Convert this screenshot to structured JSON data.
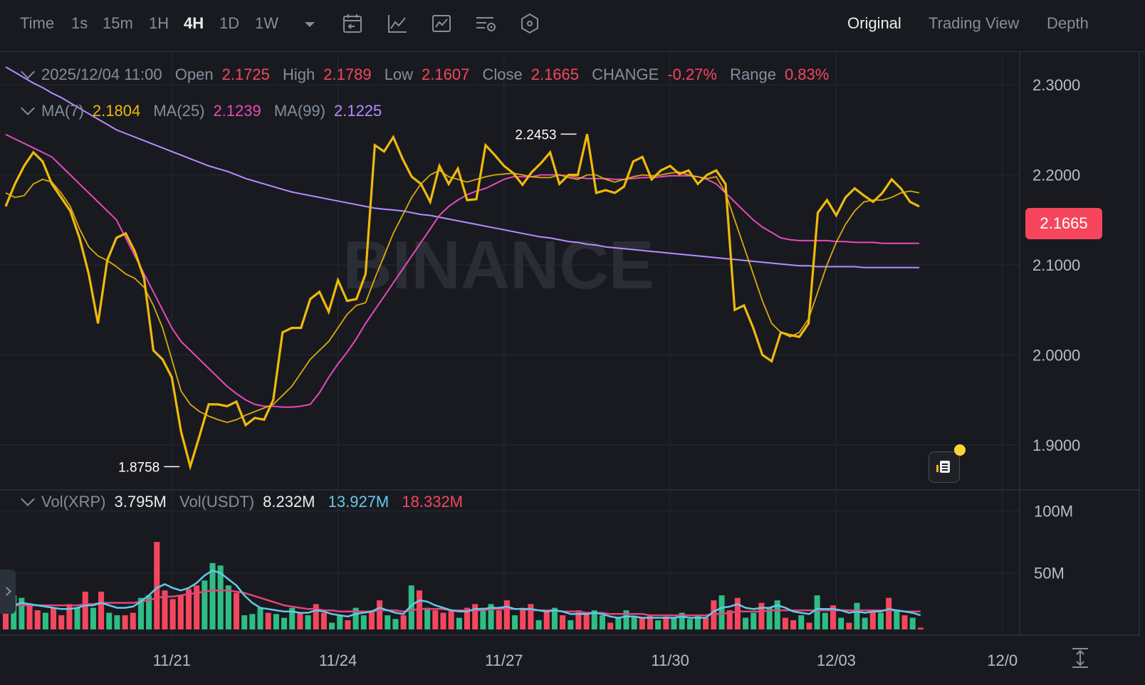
{
  "toolbar": {
    "intervals": [
      "Time",
      "1s",
      "15m",
      "1H",
      "4H",
      "1D",
      "1W"
    ],
    "active_interval": "4H",
    "icons": [
      "chevron-down-icon",
      "calendar-icon",
      "indicator-icon",
      "chart-type-icon",
      "settings-icon",
      "hexagon-icon"
    ],
    "views": [
      "Original",
      "Trading View",
      "Depth"
    ],
    "active_view": "Original"
  },
  "ohlc": {
    "date": "2025/12/04 11:00",
    "open_label": "Open",
    "open": "2.1725",
    "high_label": "High",
    "high": "2.1789",
    "low_label": "Low",
    "low": "2.1607",
    "close_label": "Close",
    "close": "2.1665",
    "change_label": "CHANGE",
    "change": "-0.27%",
    "range_label": "Range",
    "range": "0.83%"
  },
  "ma": {
    "ma7_label": "MA(7)",
    "ma7": "2.1804",
    "ma25_label": "MA(25)",
    "ma25": "2.1239",
    "ma99_label": "MA(99)",
    "ma99": "2.1225"
  },
  "volume": {
    "xrp_label": "Vol(XRP)",
    "xrp": "3.795M",
    "usdt_label": "Vol(USDT)",
    "usdt": "8.232M",
    "ma_a": "13.927M",
    "ma_b": "18.332M"
  },
  "last_price": "2.1665",
  "watermark": "BINANCE",
  "colors": {
    "up": "#2ebd85",
    "down": "#f6465d",
    "price": "#f0b90b",
    "ma7": "#f0b90b",
    "ma25": "#e84ab8",
    "ma99": "#b78cff",
    "vol_ma_a": "#66c8e8",
    "vol_ma_b": "#e0457b"
  },
  "chart_data": {
    "type": "line",
    "title": "",
    "price_axis": {
      "ticks": [
        "2.3000",
        "2.2000",
        "2.1000",
        "2.0000",
        "1.9000"
      ],
      "values": [
        2.3,
        2.2,
        2.1,
        2.0,
        1.9
      ],
      "range": [
        1.85,
        2.335
      ]
    },
    "volume_axis": {
      "ticks": [
        "100M",
        "50M"
      ],
      "values": [
        100,
        50
      ],
      "range": [
        0,
        110
      ]
    },
    "x_ticks": [
      "11/21",
      "11/24",
      "11/27",
      "11/30",
      "12/03",
      "12/0"
    ],
    "x_tick_index": [
      18,
      36,
      54,
      72,
      90,
      108
    ],
    "annotations": [
      {
        "text": "2.2453",
        "value": 2.2453,
        "index": 62
      },
      {
        "text": "1.8758",
        "value": 1.8758,
        "index": 19
      }
    ],
    "series": [
      {
        "name": "Price",
        "values": [
          2.165,
          2.19,
          2.21,
          2.225,
          2.215,
          2.19,
          2.175,
          2.16,
          2.13,
          2.09,
          2.035,
          2.105,
          2.13,
          2.135,
          2.115,
          2.085,
          2.005,
          1.995,
          1.975,
          1.915,
          1.876,
          1.91,
          1.945,
          1.945,
          1.943,
          1.948,
          1.922,
          1.93,
          1.928,
          1.95,
          2.025,
          2.03,
          2.03,
          2.062,
          2.07,
          2.048,
          2.083,
          2.06,
          2.062,
          2.09,
          2.233,
          2.226,
          2.242,
          2.218,
          2.198,
          2.19,
          2.17,
          2.21,
          2.19,
          2.207,
          2.172,
          2.173,
          2.233,
          2.222,
          2.21,
          2.202,
          2.189,
          2.203,
          2.213,
          2.225,
          2.19,
          2.2,
          2.2,
          2.2453,
          2.18,
          2.183,
          2.18,
          2.187,
          2.215,
          2.22,
          2.195,
          2.205,
          2.21,
          2.201,
          2.205,
          2.19,
          2.2,
          2.205,
          2.19,
          2.05,
          2.055,
          2.03,
          2.0,
          1.993,
          2.025,
          2.022,
          2.02,
          2.035,
          2.158,
          2.172,
          2.155,
          2.175,
          2.185,
          2.177,
          2.17,
          2.18,
          2.195,
          2.185,
          2.17,
          2.165
        ]
      },
      {
        "name": "MA(7)",
        "values": [
          2.18,
          2.175,
          2.177,
          2.19,
          2.195,
          2.192,
          2.18,
          2.165,
          2.14,
          2.12,
          2.11,
          2.105,
          2.098,
          2.09,
          2.085,
          2.075,
          2.055,
          2.03,
          1.995,
          1.96,
          1.945,
          1.937,
          1.932,
          1.928,
          1.925,
          1.928,
          1.933,
          1.937,
          1.941,
          1.945,
          1.955,
          1.965,
          1.98,
          1.995,
          2.005,
          2.015,
          2.03,
          2.045,
          2.055,
          2.058,
          2.085,
          2.11,
          2.135,
          2.155,
          2.175,
          2.19,
          2.2,
          2.205,
          2.198,
          2.195,
          2.192,
          2.195,
          2.198,
          2.2,
          2.201,
          2.202,
          2.2,
          2.198,
          2.197,
          2.197,
          2.2,
          2.197,
          2.195,
          2.2,
          2.2,
          2.195,
          2.192,
          2.195,
          2.198,
          2.2,
          2.199,
          2.2,
          2.202,
          2.203,
          2.2,
          2.198,
          2.196,
          2.198,
          2.18,
          2.15,
          2.12,
          2.09,
          2.06,
          2.035,
          2.025,
          2.02,
          2.025,
          2.04,
          2.07,
          2.1,
          2.125,
          2.145,
          2.16,
          2.17,
          2.172,
          2.172,
          2.175,
          2.18,
          2.182,
          2.18
        ]
      },
      {
        "name": "MA(25)",
        "values": [
          2.245,
          2.24,
          2.235,
          2.23,
          2.225,
          2.22,
          2.21,
          2.2,
          2.19,
          2.18,
          2.17,
          2.16,
          2.15,
          2.13,
          2.11,
          2.09,
          2.07,
          2.05,
          2.03,
          2.015,
          2.005,
          1.995,
          1.985,
          1.975,
          1.965,
          1.957,
          1.95,
          1.945,
          1.943,
          1.943,
          1.942,
          1.942,
          1.943,
          1.945,
          1.958,
          1.975,
          1.99,
          2.003,
          2.018,
          2.035,
          2.05,
          2.065,
          2.08,
          2.095,
          2.11,
          2.125,
          2.14,
          2.155,
          2.165,
          2.172,
          2.178,
          2.182,
          2.185,
          2.19,
          2.195,
          2.198,
          2.198,
          2.198,
          2.2,
          2.2,
          2.2,
          2.199,
          2.197,
          2.196,
          2.196,
          2.196,
          2.195,
          2.195,
          2.196,
          2.197,
          2.197,
          2.198,
          2.199,
          2.199,
          2.199,
          2.198,
          2.195,
          2.19,
          2.18,
          2.17,
          2.16,
          2.15,
          2.142,
          2.136,
          2.13,
          2.128,
          2.127,
          2.127,
          2.127,
          2.127,
          2.126,
          2.126,
          2.125,
          2.125,
          2.125,
          2.124,
          2.124,
          2.124,
          2.124,
          2.124
        ]
      },
      {
        "name": "MA(99)",
        "values": [
          2.32,
          2.314,
          2.308,
          2.302,
          2.297,
          2.291,
          2.286,
          2.28,
          2.274,
          2.268,
          2.262,
          2.256,
          2.25,
          2.246,
          2.242,
          2.238,
          2.234,
          2.23,
          2.226,
          2.222,
          2.218,
          2.214,
          2.21,
          2.207,
          2.204,
          2.2,
          2.196,
          2.193,
          2.19,
          2.187,
          2.184,
          2.181,
          2.179,
          2.177,
          2.175,
          2.173,
          2.171,
          2.169,
          2.167,
          2.165,
          2.163,
          2.162,
          2.161,
          2.16,
          2.158,
          2.156,
          2.155,
          2.153,
          2.151,
          2.149,
          2.147,
          2.145,
          2.143,
          2.141,
          2.139,
          2.137,
          2.135,
          2.133,
          2.131,
          2.13,
          2.128,
          2.126,
          2.125,
          2.123,
          2.122,
          2.12,
          2.119,
          2.118,
          2.117,
          2.116,
          2.115,
          2.114,
          2.113,
          2.112,
          2.111,
          2.11,
          2.109,
          2.108,
          2.107,
          2.106,
          2.105,
          2.104,
          2.103,
          2.102,
          2.101,
          2.1,
          2.099,
          2.099,
          2.098,
          2.098,
          2.098,
          2.098,
          2.098,
          2.097,
          2.097,
          2.097,
          2.097,
          2.097,
          2.097,
          2.097
        ]
      },
      {
        "name": "Volume",
        "values": [
          22,
          32,
          30,
          25,
          20,
          18,
          22,
          16,
          25,
          22,
          35,
          22,
          35,
          18,
          16,
          16,
          18,
          30,
          32,
          75,
          36,
          29,
          32,
          37,
          40,
          44,
          58,
          56,
          40,
          34,
          16,
          17,
          22,
          18,
          17,
          14,
          22,
          18,
          16,
          25,
          18,
          10,
          16,
          12,
          22,
          16,
          20,
          28,
          16,
          13,
          16,
          40,
          36,
          22,
          20,
          18,
          20,
          14,
          22,
          25,
          22,
          25,
          20,
          28,
          16,
          22,
          25,
          12,
          20,
          22,
          16,
          12,
          20,
          18,
          20,
          16,
          10,
          14,
          20,
          15,
          14,
          16,
          12,
          15,
          14,
          18,
          13,
          16,
          14,
          28,
          32,
          20,
          30,
          14,
          18,
          26,
          22,
          28,
          14,
          12,
          16,
          10,
          32,
          18,
          24,
          14,
          10,
          26,
          14,
          20,
          18,
          30,
          20,
          16,
          14,
          6
        ]
      },
      {
        "name": "Volume direction",
        "values": [
          0,
          1,
          1,
          0,
          0,
          1,
          0,
          0,
          0,
          1,
          0,
          1,
          0,
          1,
          1,
          0,
          0,
          1,
          1,
          0,
          0,
          0,
          0,
          0,
          0,
          1,
          1,
          1,
          1,
          0,
          1,
          1,
          1,
          0,
          1,
          1,
          1,
          0,
          1,
          0,
          0,
          1,
          1,
          0,
          1,
          1,
          0,
          0,
          1,
          1,
          0,
          1,
          0,
          1,
          0,
          0,
          0,
          1,
          0,
          0,
          1,
          1,
          0,
          0,
          1,
          0,
          0,
          1,
          0,
          1,
          0,
          1,
          0,
          0,
          1,
          1,
          0,
          1,
          1,
          1,
          0,
          0,
          1,
          0,
          1,
          1,
          1,
          1,
          0,
          0,
          1,
          0,
          0,
          1,
          1,
          0,
          1,
          1,
          0,
          0,
          1,
          0,
          1,
          1,
          0,
          1,
          0,
          1,
          1,
          0,
          1,
          0,
          1,
          0,
          1,
          0
        ]
      },
      {
        "name": "Volume MA A",
        "values": [
          20,
          24,
          26,
          25,
          24,
          23,
          22,
          21,
          21,
          22,
          24,
          24,
          26,
          24,
          22,
          22,
          23,
          27,
          32,
          38,
          41,
          38,
          36,
          38,
          42,
          48,
          52,
          50,
          45,
          40,
          32,
          26,
          22,
          21,
          20,
          19,
          19,
          18,
          18,
          20,
          19,
          17,
          16,
          15,
          17,
          18,
          19,
          22,
          20,
          18,
          17,
          24,
          28,
          27,
          24,
          22,
          20,
          19,
          19,
          21,
          21,
          22,
          22,
          23,
          21,
          21,
          21,
          20,
          19,
          20,
          19,
          17,
          17,
          17,
          18,
          17,
          15,
          14,
          15,
          15,
          14,
          14,
          14,
          14,
          14,
          15,
          14,
          14,
          14,
          19,
          22,
          23,
          25,
          22,
          21,
          22,
          22,
          24,
          22,
          19,
          18,
          17,
          21,
          21,
          21,
          20,
          18,
          19,
          18,
          19,
          19,
          21,
          20,
          19,
          18,
          16
        ]
      },
      {
        "name": "Volume MA B",
        "values": [
          24,
          24,
          24,
          24,
          24,
          24,
          24,
          24,
          24,
          24,
          25,
          25,
          26,
          26,
          26,
          26,
          26,
          27,
          28,
          30,
          31,
          31,
          32,
          33,
          34,
          35,
          36,
          36,
          36,
          35,
          34,
          32,
          30,
          28,
          26,
          24,
          23,
          22,
          21,
          21,
          20,
          20,
          19,
          19,
          19,
          19,
          19,
          20,
          20,
          20,
          19,
          20,
          21,
          21,
          21,
          21,
          20,
          20,
          20,
          20,
          20,
          21,
          21,
          21,
          21,
          21,
          20,
          20,
          20,
          20,
          19,
          19,
          19,
          18,
          18,
          18,
          17,
          17,
          17,
          17,
          17,
          16,
          16,
          16,
          16,
          16,
          16,
          16,
          16,
          17,
          17,
          18,
          19,
          19,
          19,
          19,
          20,
          20,
          20,
          20,
          20,
          20,
          20,
          20,
          20,
          20,
          20,
          20,
          20,
          20,
          20,
          20,
          20,
          19,
          19,
          19
        ]
      }
    ]
  }
}
